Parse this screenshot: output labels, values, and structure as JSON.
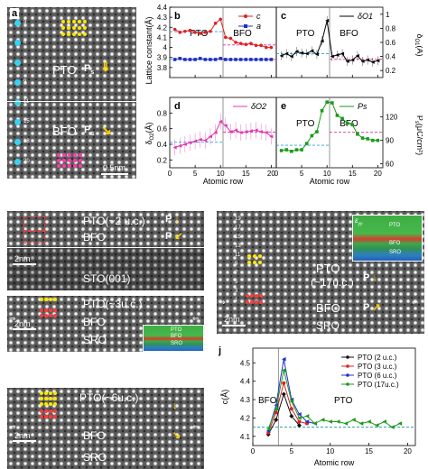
{
  "panel_a": {
    "letter": "a",
    "pto_label": "PTO",
    "bfo_label": "BFO",
    "p_label": "P",
    "p_sub": "s",
    "scale": "0.5nm",
    "row_labels": [
      "3",
      "6",
      "8",
      "9",
      "11",
      "15",
      "18",
      "20"
    ]
  },
  "charts": {
    "ytitle_b": "Lattice constant(Å)",
    "ytitle_c": "δ",
    "ytitle_c_sub": "O1",
    "ytitle_c_unit": "(Å)",
    "ytitle_d": "δ",
    "ytitle_d_sub": "O2",
    "ytitle_d_unit": "(Å)",
    "ytitle_e": "P",
    "ytitle_e_sub": "s",
    "ytitle_e_unit": "(μC/cm²)",
    "xtitle": "Atomic row"
  },
  "chart_data": [
    {
      "panel": "b",
      "type": "line",
      "x": [
        1,
        2,
        3,
        4,
        5,
        6,
        7,
        8,
        9,
        10,
        11,
        12,
        13,
        14,
        15,
        16,
        17,
        18,
        19,
        20
      ],
      "series": [
        {
          "name": "c",
          "color": "#e02020",
          "values": [
            4.18,
            4.15,
            4.16,
            4.17,
            4.15,
            4.14,
            4.15,
            4.16,
            4.24,
            4.28,
            4.1,
            4.09,
            4.05,
            4.04,
            4.03,
            4.04,
            4.02,
            4.02,
            4.0,
            4.0
          ]
        },
        {
          "name": "a",
          "color": "#2030c0",
          "values": [
            3.88,
            3.89,
            3.88,
            3.88,
            3.88,
            3.89,
            3.88,
            3.88,
            3.88,
            3.89,
            3.88,
            3.88,
            3.88,
            3.88,
            3.88,
            3.88,
            3.88,
            3.88,
            3.88,
            3.88
          ]
        }
      ],
      "labels": [
        "PTO",
        "BFO"
      ],
      "ylim": [
        3.7,
        4.4
      ],
      "yticks": [
        3.8,
        3.9,
        4.0,
        4.1,
        4.2,
        4.3,
        4.4
      ],
      "xticks": [
        0,
        5,
        10,
        15,
        20
      ],
      "xlim": [
        0,
        21
      ]
    },
    {
      "panel": "c",
      "type": "line",
      "x": [
        1,
        2,
        3,
        4,
        5,
        6,
        7,
        8,
        9,
        10,
        11,
        12,
        13,
        14,
        15,
        16,
        17,
        18,
        19,
        20
      ],
      "series": [
        {
          "name": "δO1",
          "color": "#000000",
          "values": [
            0.41,
            0.44,
            0.4,
            0.47,
            0.45,
            0.44,
            0.48,
            0.43,
            0.62,
            0.91,
            0.4,
            0.42,
            0.44,
            0.33,
            0.35,
            0.41,
            0.33,
            0.35,
            0.32,
            0.34
          ]
        }
      ],
      "labels": [
        "PTO",
        "BFO"
      ],
      "ylim": [
        0.1,
        1.1
      ],
      "yticks": [
        0.2,
        0.4,
        0.6,
        0.8,
        1.0
      ],
      "xticks": [
        0,
        5,
        10,
        15,
        20
      ],
      "xlim": [
        0,
        21
      ]
    },
    {
      "panel": "d",
      "type": "line",
      "x": [
        1,
        2,
        3,
        4,
        5,
        6,
        7,
        8,
        9,
        10,
        11,
        12,
        13,
        14,
        15,
        16,
        17,
        18,
        19,
        20
      ],
      "series": [
        {
          "name": "δO2",
          "color": "#e033b0",
          "values": [
            0.36,
            0.38,
            0.4,
            0.42,
            0.44,
            0.46,
            0.45,
            0.5,
            0.55,
            0.69,
            0.64,
            0.56,
            0.58,
            0.55,
            0.56,
            0.57,
            0.58,
            0.56,
            0.55,
            0.5
          ]
        }
      ],
      "ylim": [
        0.1,
        1.0
      ],
      "yticks": [
        0.2,
        0.4,
        0.6,
        0.8
      ],
      "xticks": [
        0,
        5,
        10,
        15,
        20
      ],
      "xlim": [
        0,
        21
      ]
    },
    {
      "panel": "e",
      "type": "line",
      "x": [
        1,
        2,
        3,
        4,
        5,
        6,
        7,
        8,
        9,
        10,
        11,
        12,
        13,
        14,
        15,
        16,
        17,
        18,
        19,
        20
      ],
      "series": [
        {
          "name": "Ps",
          "color": "#1a9a1a",
          "values": [
            77,
            78,
            76,
            78,
            78,
            86,
            96,
            101,
            128,
            139,
            138,
            122,
            118,
            112,
            110,
            98,
            93,
            92,
            90,
            90
          ]
        }
      ],
      "labels": [
        "PTO",
        "BFO"
      ],
      "ylim": [
        55,
        145
      ],
      "yticks": [
        60,
        90,
        120
      ],
      "xticks": [
        0,
        5,
        10,
        15,
        20
      ],
      "xlim": [
        0,
        21
      ]
    },
    {
      "panel": "j",
      "type": "line",
      "legend": [
        "PTO (2 u.c.)",
        "PTO (3 u.c.)",
        "PTO (6 u.c.)",
        "PTO (17u.c.)"
      ],
      "series": [
        {
          "name": "PTO (2 u.c.)",
          "color": "#111111",
          "x": [
            2,
            3,
            4,
            5,
            6
          ],
          "values": [
            4.11,
            4.19,
            4.33,
            4.21,
            4.16
          ]
        },
        {
          "name": "PTO (3 u.c.)",
          "color": "#e02020",
          "x": [
            2,
            3,
            4,
            5,
            6,
            7
          ],
          "values": [
            4.12,
            4.23,
            4.39,
            4.25,
            4.18,
            4.17
          ]
        },
        {
          "name": "PTO (6 u.c.)",
          "color": "#2030d0",
          "x": [
            2,
            3,
            4,
            5,
            6,
            7,
            8
          ],
          "values": [
            4.13,
            4.27,
            4.52,
            4.3,
            4.22,
            4.18,
            4.17
          ]
        },
        {
          "name": "PTO (17u.c.)",
          "color": "#1a9a1a",
          "x": [
            2,
            3,
            4,
            5,
            6,
            7,
            8,
            9,
            10,
            11,
            12,
            13,
            14,
            15,
            16,
            17,
            18,
            19
          ],
          "values": [
            4.14,
            4.25,
            4.46,
            4.29,
            4.2,
            4.21,
            4.17,
            4.19,
            4.18,
            4.18,
            4.17,
            4.19,
            4.17,
            4.18,
            4.16,
            4.18,
            4.15,
            4.17
          ]
        }
      ],
      "labels": [
        "BFO",
        "PTO"
      ],
      "xlabel": "Atomic row",
      "ylabel": "c(Å)",
      "ylim": [
        4.05,
        4.58
      ],
      "yticks": [
        4.1,
        4.2,
        4.3,
        4.4,
        4.5
      ],
      "xticks": [
        0,
        5,
        10,
        15,
        20
      ],
      "xlim": [
        0,
        21
      ]
    }
  ],
  "panel_f": {
    "letter": "f",
    "pto": "PTO(~2 u.c.)",
    "bfo": "BFO",
    "sto": "STO(001)",
    "scale": "2nm"
  },
  "panel_g": {
    "letter": "g",
    "pto": "PTO(~3u.c.)",
    "bfo": "BFO",
    "sro": "SRO",
    "scale": "2nm",
    "inset_pto": "PTO",
    "inset_bfo": "BFO",
    "inset_sro": "SRO"
  },
  "panel_h": {
    "letter": "h",
    "pto": "PTO(~6u.c.)",
    "bfo": "BFO",
    "sro": "SRO",
    "scale": "2nm"
  },
  "panel_i": {
    "letter": "i",
    "pto": "PTO",
    "pto2": "(~17u.c.)",
    "bfo": "BFO",
    "sro": "SRO",
    "scale": "2nm",
    "inset_eps": "ε",
    "inset_eps_sub": "yy",
    "inset_pto": "PTO",
    "inset_bfo": "BFO",
    "inset_sro": "SRO",
    "row_labels": [
      "19",
      "17",
      "15",
      "13",
      "11",
      "9",
      "7",
      "5",
      "3",
      "1"
    ]
  },
  "panel_j_letter": "j"
}
